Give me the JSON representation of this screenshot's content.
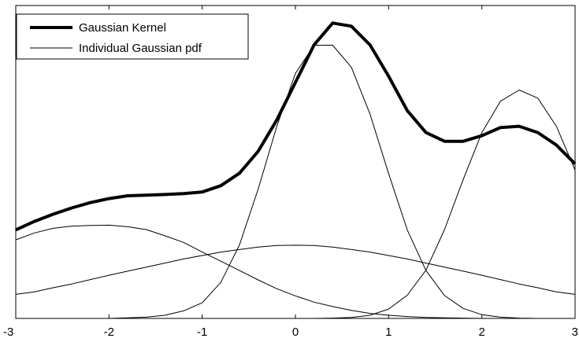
{
  "chart_data": {
    "type": "line",
    "title": "",
    "xlabel": "",
    "ylabel": "",
    "xlim": [
      -3,
      3
    ],
    "ylim": [
      0,
      1
    ],
    "x_ticks": [
      -3,
      -2,
      -1,
      0,
      1,
      2,
      3
    ],
    "x_tick_labels": [
      "-3",
      "-2",
      "-1",
      "0",
      "1",
      "2",
      "3"
    ],
    "y_ticks_shown": false,
    "grid": false,
    "legend": {
      "placement": "top-left",
      "entries": [
        {
          "label": "Gaussian Kernel",
          "style": "thick"
        },
        {
          "label": "Individual Gaussian pdf",
          "style": "thin"
        }
      ]
    },
    "x": [
      -3,
      -2.8,
      -2.6,
      -2.4,
      -2.2,
      -2.0,
      -1.8,
      -1.6,
      -1.4,
      -1.2,
      -1.0,
      -0.8,
      -0.6,
      -0.4,
      -0.2,
      0.0,
      0.2,
      0.4,
      0.6,
      0.8,
      1.0,
      1.2,
      1.4,
      1.6,
      1.8,
      2.0,
      2.2,
      2.4,
      2.6,
      2.8,
      3.0
    ],
    "series": [
      {
        "name": "Gaussian Kernel",
        "style": "thick",
        "values": [
          0.283,
          0.31,
          0.333,
          0.353,
          0.37,
          0.383,
          0.392,
          0.394,
          0.396,
          0.399,
          0.404,
          0.424,
          0.464,
          0.534,
          0.634,
          0.754,
          0.874,
          0.944,
          0.934,
          0.874,
          0.774,
          0.664,
          0.594,
          0.566,
          0.566,
          0.584,
          0.61,
          0.614,
          0.594,
          0.554,
          0.494
        ],
        "legend_label_index": 0
      },
      {
        "style": "thin",
        "values": [
          0.251,
          0.273,
          0.288,
          0.295,
          0.297,
          0.298,
          0.293,
          0.284,
          0.264,
          0.243,
          0.212,
          0.183,
          0.153,
          0.123,
          0.095,
          0.072,
          0.052,
          0.038,
          0.026,
          0.016,
          0.01,
          0.006,
          0.003,
          0.002,
          0.001,
          0.0,
          0.0,
          0.0,
          0.0,
          0.0,
          0.0
        ]
      },
      {
        "style": "thin",
        "values": [
          0.0,
          0.0,
          0.0,
          0.0,
          0.0,
          0.0,
          0.002,
          0.004,
          0.01,
          0.024,
          0.05,
          0.115,
          0.235,
          0.413,
          0.613,
          0.783,
          0.873,
          0.873,
          0.803,
          0.653,
          0.463,
          0.283,
          0.153,
          0.073,
          0.032,
          0.012,
          0.004,
          0.001,
          0.0,
          0.0,
          0.0
        ]
      },
      {
        "style": "thin",
        "values": [
          0.077,
          0.085,
          0.098,
          0.11,
          0.124,
          0.138,
          0.151,
          0.164,
          0.177,
          0.19,
          0.201,
          0.212,
          0.22,
          0.228,
          0.233,
          0.234,
          0.233,
          0.228,
          0.22,
          0.212,
          0.201,
          0.19,
          0.177,
          0.164,
          0.151,
          0.138,
          0.124,
          0.11,
          0.098,
          0.085,
          0.077
        ]
      },
      {
        "style": "thin",
        "values": [
          0.0,
          0.0,
          0.0,
          0.0,
          0.0,
          0.0,
          0.0,
          0.0,
          0.0,
          0.0,
          0.0,
          0.0,
          0.0,
          0.0,
          0.0,
          0.0,
          0.0,
          0.001,
          0.003,
          0.01,
          0.03,
          0.074,
          0.154,
          0.284,
          0.444,
          0.594,
          0.694,
          0.73,
          0.704,
          0.614,
          0.474
        ]
      }
    ]
  }
}
